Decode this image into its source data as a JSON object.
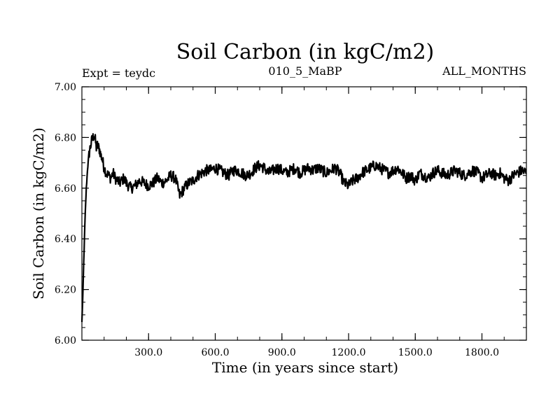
{
  "chart_data": {
    "type": "line",
    "title": "Soil Carbon (in kgC/m2)",
    "left_label": "Expt = teydc",
    "center_label": "010_5_MaBP",
    "right_label": "ALL_MONTHS",
    "xlabel": "Time (in years since start)",
    "ylabel": "Soil Carbon (in kgC/m2)",
    "xlim": [
      0,
      2000
    ],
    "ylim": [
      6.0,
      7.0
    ],
    "x_ticks": [
      300,
      600,
      900,
      1200,
      1500,
      1800
    ],
    "x_tick_labels": [
      "300.0",
      "600.0",
      "900.0",
      "1200.0",
      "1500.0",
      "1800.0"
    ],
    "y_ticks": [
      6.0,
      6.2,
      6.4,
      6.6,
      6.8,
      7.0
    ],
    "y_tick_labels": [
      "6.00",
      "6.20",
      "6.40",
      "6.60",
      "6.80",
      "7.00"
    ],
    "line_color": "#000000",
    "series": [
      {
        "name": "Soil Carbon",
        "x": [
          0,
          5,
          10,
          15,
          20,
          25,
          30,
          35,
          40,
          45,
          50,
          55,
          60,
          65,
          70,
          75,
          80,
          85,
          90,
          95,
          100,
          110,
          120,
          130,
          140,
          150,
          160,
          170,
          180,
          190,
          200,
          220,
          240,
          260,
          280,
          300,
          320,
          340,
          360,
          380,
          400,
          420,
          440,
          460,
          480,
          500,
          520,
          540,
          560,
          580,
          600,
          620,
          640,
          660,
          680,
          700,
          720,
          740,
          760,
          780,
          800,
          820,
          840,
          860,
          880,
          900,
          920,
          940,
          960,
          980,
          1000,
          1020,
          1040,
          1060,
          1080,
          1100,
          1120,
          1140,
          1160,
          1180,
          1200,
          1220,
          1240,
          1260,
          1280,
          1300,
          1320,
          1340,
          1360,
          1380,
          1400,
          1420,
          1440,
          1460,
          1480,
          1500,
          1520,
          1540,
          1560,
          1580,
          1600,
          1620,
          1640,
          1660,
          1680,
          1700,
          1720,
          1740,
          1760,
          1780,
          1800,
          1820,
          1840,
          1860,
          1880,
          1900,
          1920,
          1940,
          1960,
          1980,
          2000
        ],
        "values": [
          6.07,
          6.2,
          6.36,
          6.5,
          6.6,
          6.67,
          6.72,
          6.75,
          6.77,
          6.79,
          6.8,
          6.81,
          6.79,
          6.76,
          6.77,
          6.76,
          6.75,
          6.73,
          6.72,
          6.7,
          6.68,
          6.66,
          6.65,
          6.64,
          6.66,
          6.64,
          6.63,
          6.62,
          6.63,
          6.64,
          6.62,
          6.6,
          6.61,
          6.63,
          6.62,
          6.61,
          6.62,
          6.64,
          6.62,
          6.63,
          6.65,
          6.64,
          6.57,
          6.6,
          6.62,
          6.63,
          6.65,
          6.66,
          6.67,
          6.67,
          6.68,
          6.67,
          6.66,
          6.65,
          6.67,
          6.67,
          6.66,
          6.65,
          6.66,
          6.68,
          6.69,
          6.68,
          6.66,
          6.67,
          6.68,
          6.67,
          6.66,
          6.67,
          6.68,
          6.66,
          6.67,
          6.68,
          6.67,
          6.68,
          6.67,
          6.66,
          6.67,
          6.68,
          6.66,
          6.62,
          6.61,
          6.63,
          6.64,
          6.66,
          6.67,
          6.68,
          6.69,
          6.68,
          6.67,
          6.66,
          6.67,
          6.68,
          6.66,
          6.64,
          6.65,
          6.63,
          6.66,
          6.65,
          6.64,
          6.66,
          6.67,
          6.66,
          6.65,
          6.66,
          6.67,
          6.66,
          6.65,
          6.66,
          6.67,
          6.66,
          6.64,
          6.65,
          6.66,
          6.65,
          6.66,
          6.64,
          6.63,
          6.65,
          6.66,
          6.67,
          6.66
        ]
      }
    ]
  }
}
